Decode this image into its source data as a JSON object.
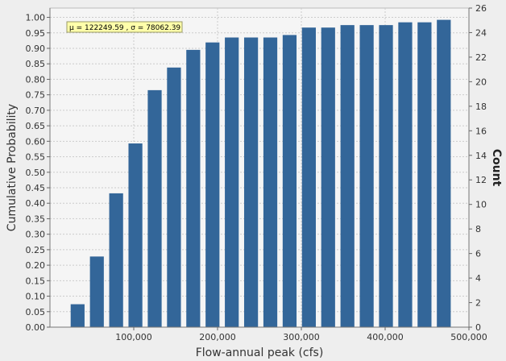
{
  "chart_data": {
    "type": "bar",
    "xlabel": "Flow-annual peak (cfs)",
    "ylabel": "Cumulative Probability",
    "y2label": "Count",
    "annotation": "μ = 122249.59 , σ = 78062.39",
    "xlim": [
      0,
      500000
    ],
    "ylim": [
      0,
      1.03
    ],
    "y2lim": [
      0,
      26
    ],
    "x_ticks": [
      100000,
      200000,
      300000,
      400000,
      500000
    ],
    "x_tick_labels": [
      "100,000",
      "200,000",
      "300,000",
      "400,000",
      "500,000"
    ],
    "y_ticks": [
      0,
      0.05,
      0.1,
      0.15,
      0.2,
      0.25,
      0.3,
      0.35,
      0.4,
      0.45,
      0.5,
      0.55,
      0.6,
      0.65,
      0.7,
      0.75,
      0.8,
      0.85,
      0.9,
      0.95,
      1.0
    ],
    "y_tick_labels": [
      "0.00",
      "0.05",
      "0.10",
      "0.15",
      "0.20",
      "0.25",
      "0.30",
      "0.35",
      "0.40",
      "0.45",
      "0.50",
      "0.55",
      "0.60",
      "0.65",
      "0.70",
      "0.75",
      "0.80",
      "0.85",
      "0.90",
      "0.95",
      "1.00"
    ],
    "y2_ticks": [
      0,
      2,
      4,
      6,
      8,
      10,
      12,
      14,
      16,
      18,
      20,
      22,
      24,
      26
    ],
    "y2_tick_labels": [
      "0",
      "2",
      "4",
      "6",
      "8",
      "10",
      "12",
      "14",
      "16",
      "18",
      "20",
      "22",
      "24",
      "26"
    ],
    "grid": true,
    "series": [
      {
        "x": [
          33000,
          56000,
          79000,
          102000,
          125000,
          148000,
          171000,
          194000,
          217000,
          240000,
          263000,
          286000,
          309000,
          332000,
          355000,
          378000,
          401000,
          424000,
          447000,
          470000
        ],
        "values": [
          0.074,
          0.228,
          0.432,
          0.593,
          0.765,
          0.838,
          0.895,
          0.919,
          0.935,
          0.935,
          0.935,
          0.943,
          0.967,
          0.967,
          0.975,
          0.975,
          0.975,
          0.984,
          0.984,
          0.992
        ]
      }
    ],
    "colors": {
      "bar": "#336699",
      "plot_background": "#f5f5f5",
      "page_background": "#eeeeee",
      "grid": "#cccccc",
      "annotation_background": "#ffffaa"
    }
  }
}
